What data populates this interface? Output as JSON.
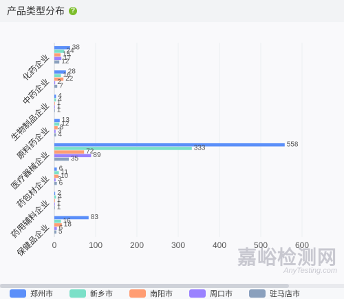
{
  "header": {
    "title": "产品类型分布",
    "help_glyph": "?"
  },
  "chart_data": {
    "type": "bar",
    "orientation": "horizontal",
    "categories": [
      "化药企业",
      "中药企业",
      "生物制品企业",
      "原料药企业",
      "医疗器械企业",
      "药包材企业",
      "药用辅料企业",
      "保健品企业"
    ],
    "series": [
      {
        "name": "郑州市",
        "color": "#5b8ff9",
        "values": [
          38,
          28,
          4,
          13,
          558,
          6,
          2,
          83
        ]
      },
      {
        "name": "新乡市",
        "color": "#7be0c8",
        "values": [
          24,
          16,
          4,
          12,
          333,
          11,
          4,
          16
        ]
      },
      {
        "name": "南阳市",
        "color": "#ff9d73",
        "values": [
          15,
          22,
          1,
          8,
          72,
          10,
          1,
          18
        ]
      },
      {
        "name": "周口市",
        "color": "#9a82ff",
        "values": [
          17,
          2,
          1,
          3,
          89,
          3,
          1,
          6
        ]
      },
      {
        "name": "驻马店市",
        "color": "#8aa0bd",
        "values": [
          12,
          7,
          1,
          4,
          35,
          6,
          1,
          5
        ]
      }
    ],
    "xlim": [
      0,
      600
    ],
    "xticks": [
      0,
      100,
      200,
      300,
      400,
      500,
      600
    ],
    "grid": true,
    "legend_position": "bottom"
  },
  "watermark": {
    "cn": "嘉峪检测网",
    "en": "AnyTesting.com"
  }
}
